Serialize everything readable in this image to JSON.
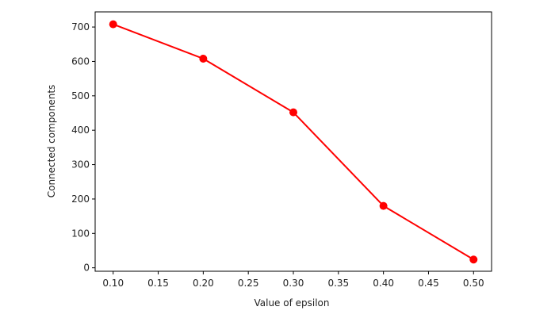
{
  "chart_data": {
    "type": "line",
    "title": "",
    "xlabel": "Value of epsilon",
    "ylabel": "Connected components",
    "x": [
      0.1,
      0.2,
      0.3,
      0.4,
      0.5
    ],
    "series": [
      {
        "values": [
          708,
          608,
          452,
          180,
          24
        ],
        "color": "#ff0000",
        "marker": "circle"
      }
    ],
    "xlim": [
      0.08,
      0.52
    ],
    "ylim": [
      -10,
      744
    ],
    "xticks": [
      0.1,
      0.15,
      0.2,
      0.25,
      0.3,
      0.35,
      0.4,
      0.45,
      0.5
    ],
    "xtick_labels": [
      "0.10",
      "0.15",
      "0.20",
      "0.25",
      "0.30",
      "0.35",
      "0.40",
      "0.45",
      "0.50"
    ],
    "yticks": [
      0,
      100,
      200,
      300,
      400,
      500,
      600,
      700
    ],
    "ytick_labels": [
      "0",
      "100",
      "200",
      "300",
      "400",
      "500",
      "600",
      "700"
    ],
    "grid": false,
    "legend": false
  }
}
